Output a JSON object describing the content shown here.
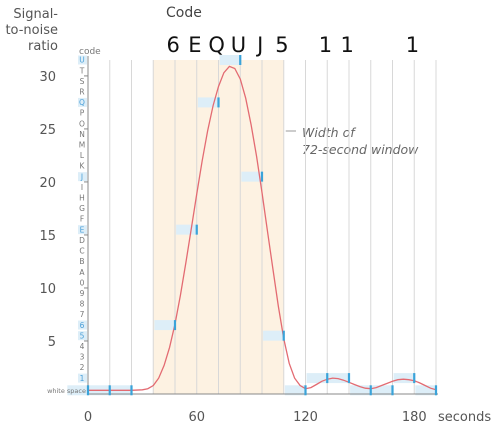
{
  "chart_data": {
    "type": "line",
    "ylabel_lines": [
      "Signal-",
      "to-noise",
      "ratio"
    ],
    "xunit": "seconds",
    "code_axis_label": "code",
    "code_title": "Code",
    "code_letters": [
      {
        "char": "6",
        "x": 47
      },
      {
        "char": "E",
        "x": 59
      },
      {
        "char": "Q",
        "x": 71
      },
      {
        "char": "U",
        "x": 83
      },
      {
        "char": "J",
        "x": 95
      },
      {
        "char": "5",
        "x": 107
      },
      {
        "char": "1",
        "x": 131
      },
      {
        "char": "1",
        "x": 143
      },
      {
        "char": "1",
        "x": 179
      }
    ],
    "xlim": [
      0,
      192
    ],
    "ylim": [
      0,
      31.5
    ],
    "xticks": [
      0,
      60,
      120,
      180
    ],
    "yticks": [
      5,
      10,
      15,
      20,
      25,
      30
    ],
    "code_ticks": [
      {
        "label": "white space",
        "y": 0.35
      },
      {
        "label": "1",
        "y": 1.5
      },
      {
        "label": "2",
        "y": 2.5
      },
      {
        "label": "3",
        "y": 3.5
      },
      {
        "label": "4",
        "y": 4.5
      },
      {
        "label": "5",
        "y": 5.5
      },
      {
        "label": "6",
        "y": 6.5
      },
      {
        "label": "7",
        "y": 7.5
      },
      {
        "label": "8",
        "y": 8.5
      },
      {
        "label": "9",
        "y": 9.5
      },
      {
        "label": "0",
        "y": 10.5
      },
      {
        "label": "A",
        "y": 11.5
      },
      {
        "label": "B",
        "y": 12.5
      },
      {
        "label": "C",
        "y": 13.5
      },
      {
        "label": "D",
        "y": 14.5
      },
      {
        "label": "E",
        "y": 15.5
      },
      {
        "label": "F",
        "y": 16.5
      },
      {
        "label": "G",
        "y": 17.5
      },
      {
        "label": "H",
        "y": 18.5
      },
      {
        "label": "I",
        "y": 19.5
      },
      {
        "label": "J",
        "y": 20.5
      },
      {
        "label": "K",
        "y": 21.5
      },
      {
        "label": "L",
        "y": 22.5
      },
      {
        "label": "M",
        "y": 23.5
      },
      {
        "label": "N",
        "y": 24.5
      },
      {
        "label": "O",
        "y": 25.5
      },
      {
        "label": "P",
        "y": 26.5
      },
      {
        "label": "Q",
        "y": 27.5
      },
      {
        "label": "R",
        "y": 28.5
      },
      {
        "label": "S",
        "y": 29.5
      },
      {
        "label": "T",
        "y": 30.5
      },
      {
        "label": "U",
        "y": 31.5
      }
    ],
    "highlighted_codes": [
      "1",
      "5",
      "6",
      "E",
      "J",
      "Q",
      "U"
    ],
    "window": {
      "start": 36,
      "end": 108
    },
    "annotation_lines": [
      "Width of",
      "72-second window"
    ],
    "curve": {
      "x": [
        0,
        6,
        12,
        18,
        24,
        30,
        33,
        36,
        39,
        42,
        45,
        48,
        51,
        54,
        57,
        60,
        63,
        66,
        69,
        72,
        75,
        78,
        81,
        84,
        87,
        90,
        93,
        96,
        99,
        102,
        105,
        108,
        111,
        114,
        117,
        120,
        123,
        126,
        129,
        132,
        135,
        138,
        141,
        144,
        147,
        150,
        153,
        156,
        159,
        162,
        165,
        168,
        171,
        174,
        177,
        180,
        183,
        186,
        189,
        192
      ],
      "y": [
        0.35,
        0.35,
        0.35,
        0.35,
        0.35,
        0.4,
        0.5,
        0.8,
        1.5,
        2.7,
        4.4,
        6.6,
        9.3,
        12.4,
        15.6,
        18.9,
        22,
        24.8,
        27.2,
        29,
        30.3,
        30.9,
        30.7,
        29.7,
        27.9,
        25.4,
        22.4,
        19,
        15.4,
        11.8,
        8.3,
        5.2,
        2.9,
        1.5,
        0.8,
        0.5,
        0.6,
        0.9,
        1.2,
        1.4,
        1.5,
        1.45,
        1.3,
        1.1,
        0.9,
        0.7,
        0.55,
        0.5,
        0.6,
        0.8,
        1,
        1.2,
        1.35,
        1.4,
        1.35,
        1.25,
        1.05,
        0.8,
        0.55,
        0.4
      ]
    },
    "samples": [
      {
        "x": 0,
        "y": 0.35,
        "code_y": 0.35
      },
      {
        "x": 12,
        "y": 0.35,
        "code_y": 0.35
      },
      {
        "x": 24,
        "y": 0.35,
        "code_y": 0.35
      },
      {
        "x": 48,
        "y": 6.5,
        "code_y": 6.5
      },
      {
        "x": 60,
        "y": 14.5,
        "code_y": 15.5
      },
      {
        "x": 72,
        "y": 27.5,
        "code_y": 27.5
      },
      {
        "x": 84,
        "y": 30.5,
        "code_y": 31.5
      },
      {
        "x": 96,
        "y": 19.5,
        "code_y": 20.5
      },
      {
        "x": 108,
        "y": 5.2,
        "code_y": 5.5
      },
      {
        "x": 120,
        "y": 0.35,
        "code_y": 0.35
      },
      {
        "x": 132,
        "y": 1.4,
        "code_y": 1.5
      },
      {
        "x": 144,
        "y": 1.4,
        "code_y": 1.5
      },
      {
        "x": 156,
        "y": 0.5,
        "code_y": 0.35
      },
      {
        "x": 168,
        "y": 0.4,
        "code_y": 0.35
      },
      {
        "x": 180,
        "y": 1.3,
        "code_y": 1.5
      },
      {
        "x": 192,
        "y": 0.4,
        "code_y": 0.35
      }
    ],
    "colors": {
      "curve": "#e36b72",
      "window": "#fdf2e2",
      "sample": "#3aa3d9",
      "sample_bar": "#ddeef8",
      "gridline": "#d8d8d8",
      "axis": "#888888"
    }
  }
}
